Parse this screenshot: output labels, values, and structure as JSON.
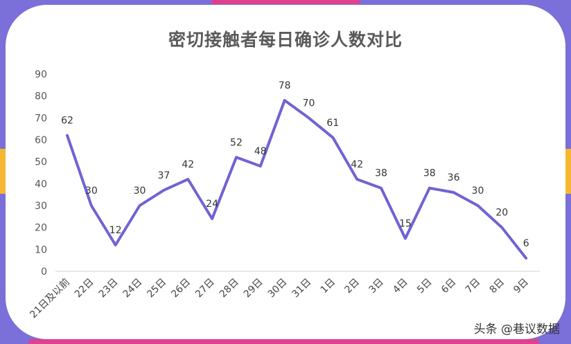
{
  "chart_data": {
    "type": "line",
    "title": "密切接触者每日确诊人数对比",
    "xlabel": "",
    "ylabel": "",
    "ylim": [
      0,
      90
    ],
    "yticks": [
      0,
      10,
      20,
      30,
      40,
      50,
      60,
      70,
      80,
      90
    ],
    "categories": [
      "21日及以前",
      "22日",
      "23日",
      "24日",
      "25日",
      "26日",
      "27日",
      "28日",
      "29日",
      "30日",
      "31日",
      "1日",
      "2日",
      "3日",
      "4日",
      "5日",
      "6日",
      "7日",
      "8日",
      "9日"
    ],
    "values": [
      62,
      30,
      12,
      30,
      37,
      42,
      24,
      52,
      48,
      78,
      70,
      61,
      42,
      38,
      15,
      38,
      36,
      30,
      20,
      6
    ],
    "data_labels": [
      "62",
      "30",
      "12",
      "30",
      "37",
      "42",
      "24",
      "52",
      "48",
      "78",
      "70",
      "61",
      "42",
      "38",
      "15",
      "38",
      "36",
      "30",
      "20",
      "6"
    ],
    "line_color": "#6f63d4",
    "grid": false,
    "legend": "none"
  },
  "colors": {
    "frame": "#7b6fd9",
    "accent_pink": "#e0418f",
    "accent_yellow": "#f5b731"
  },
  "watermark": "头条 @巷议数据"
}
